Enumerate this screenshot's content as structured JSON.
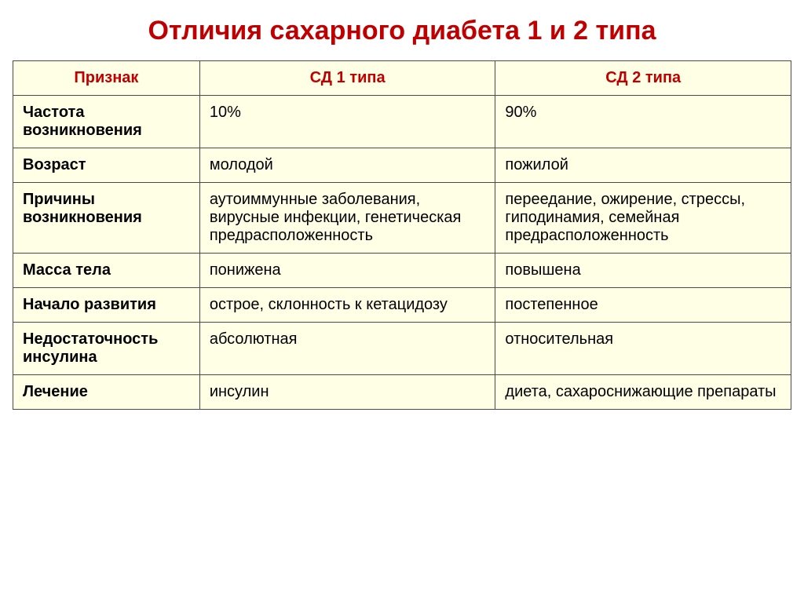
{
  "title": {
    "text": "Отличия сахарного диабета 1 и 2 типа",
    "color": "#c00000",
    "fontsize": 34
  },
  "table": {
    "background_color": "#feffe5",
    "border_color": "#4a4a4a",
    "header_color": "#c00000",
    "header_fontsize": 20,
    "cell_fontsize": 20,
    "col_widths": [
      "24%",
      "38%",
      "38%"
    ],
    "columns": [
      "Признак",
      "СД 1 типа",
      "СД 2 типа"
    ],
    "rows": [
      {
        "label": "Частота возникновения",
        "c1": "10%",
        "c2": "90%"
      },
      {
        "label": "Возраст",
        "c1": "молодой",
        "c2": "пожилой"
      },
      {
        "label": "Причины возникновения",
        "c1": "аутоиммунные заболевания, вирусные инфекции, генетическая предрасположенность",
        "c2": "переедание, ожирение, стрессы, гиподинамия, семейная предрасположенность"
      },
      {
        "label": "Масса тела",
        "c1": "понижена",
        "c2": "повышена"
      },
      {
        "label": "Начало развития",
        "c1": "острое, склонность к кетацидозу",
        "c2": "постепенное"
      },
      {
        "label": "Недостаточность инсулина",
        "c1": "абсолютная",
        "c2": "относительная"
      },
      {
        "label": "Лечение",
        "c1": "инсулин",
        "c2": "диета, сахароснижающие препараты"
      }
    ]
  }
}
